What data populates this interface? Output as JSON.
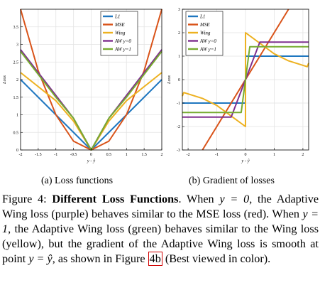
{
  "chart_data": [
    {
      "type": "line",
      "xlabel": "y - ŷ",
      "ylabel": "Loss",
      "xlim": [
        -2,
        2
      ],
      "ylim": [
        0,
        4
      ],
      "xticks": [
        "-2",
        "-1.5",
        "-1",
        "-0.5",
        "0",
        "0.5",
        "1",
        "1.5",
        "2"
      ],
      "yticks": [
        "0",
        "0.5",
        "1",
        "1.5",
        "2",
        "2.5",
        "3",
        "3.5"
      ],
      "grid": true,
      "legend_position": "top-center",
      "x": [
        -2,
        -1.5,
        -1,
        -0.5,
        0,
        0.5,
        1,
        1.5,
        2
      ],
      "series": [
        {
          "name": "L1",
          "values": [
            2.0,
            1.5,
            1.0,
            0.5,
            0.0,
            0.5,
            1.0,
            1.5,
            2.0
          ]
        },
        {
          "name": "MSE",
          "values": [
            4.0,
            2.25,
            1.0,
            0.25,
            0.0,
            0.25,
            1.0,
            2.25,
            4.0
          ]
        },
        {
          "name": "Wing",
          "values": [
            2.2,
            1.8,
            1.4,
            0.82,
            0.0,
            0.82,
            1.4,
            1.8,
            2.2
          ]
        },
        {
          "name": "AW y=0",
          "values": [
            2.85,
            2.2,
            1.55,
            0.9,
            0.0,
            0.9,
            1.55,
            2.2,
            2.85
          ]
        },
        {
          "name": "AW y=1",
          "values": [
            2.8,
            2.15,
            1.5,
            0.9,
            0.0,
            0.9,
            1.5,
            2.15,
            2.8
          ]
        }
      ],
      "legend": [
        "L1",
        "MSE",
        "Wing",
        "AW y=0",
        "AW y=1"
      ]
    },
    {
      "type": "line",
      "xlabel": "y - ŷ",
      "ylabel": "Loss",
      "xlim": [
        -2.2,
        2.2
      ],
      "ylim": [
        -3,
        3
      ],
      "xticks": [
        "-2",
        "-1",
        "0",
        "1",
        "2"
      ],
      "yticks": [
        "-3",
        "-2",
        "-1",
        "0",
        "1",
        "2",
        "3"
      ],
      "grid": true,
      "legend_position": "top-left",
      "series": [
        {
          "name": "L1",
          "x": [
            -2.2,
            -0.001,
            0.001,
            2.2
          ],
          "values": [
            -1,
            -1,
            1,
            1
          ]
        },
        {
          "name": "MSE",
          "x": [
            -1.5,
            1.5
          ],
          "values": [
            -3,
            3
          ]
        },
        {
          "name": "Wing",
          "x": [
            -2.2,
            -2.15,
            -1.5,
            -1,
            -0.5,
            -0.001,
            0.001,
            0.5,
            1,
            1.5,
            2.15,
            2.2
          ],
          "values": [
            -0.7,
            -0.55,
            -0.8,
            -1.1,
            -1.55,
            -2.0,
            2.0,
            1.55,
            1.1,
            0.8,
            0.55,
            0.7
          ]
        },
        {
          "name": "AW y=0",
          "x": [
            -2.2,
            -0.5,
            0,
            0.5,
            2.2
          ],
          "values": [
            -1.6,
            -1.6,
            0,
            1.6,
            1.6
          ]
        },
        {
          "name": "AW y=1",
          "x": [
            -2.2,
            -0.15,
            0,
            0.15,
            2.2
          ],
          "values": [
            -1.4,
            -1.4,
            0,
            1.4,
            1.4
          ]
        }
      ],
      "legend": [
        "L1",
        "MSE",
        "Wing",
        "AW y=0",
        "AW y=1"
      ]
    }
  ],
  "colors": {
    "L1": "#1f77c0",
    "MSE": "#d95319",
    "Wing": "#edb120",
    "AW y=0": "#7e2f8e",
    "AW y=1": "#77ac30"
  },
  "captions": {
    "a": "(a) Loss functions",
    "b": "(b) Gradient of losses"
  },
  "figure_caption": {
    "label": "Figure 4:",
    "title": "Different Loss Functions",
    "t1": ". When ",
    "m1": "y = 0",
    "t2": ", the Adaptive Wing loss (purple) behaves similar to the MSE loss (red). When ",
    "m2": "y = 1",
    "t3": ", the Adaptive Wing loss (green) behaves similar to the Wing loss (yellow), but the gradient of the Adaptive Wing loss is smooth at point ",
    "m3": "y = ŷ",
    "t4": ", as shown in Figure ",
    "ref": "4b",
    "t5": " (Best viewed in color)."
  }
}
